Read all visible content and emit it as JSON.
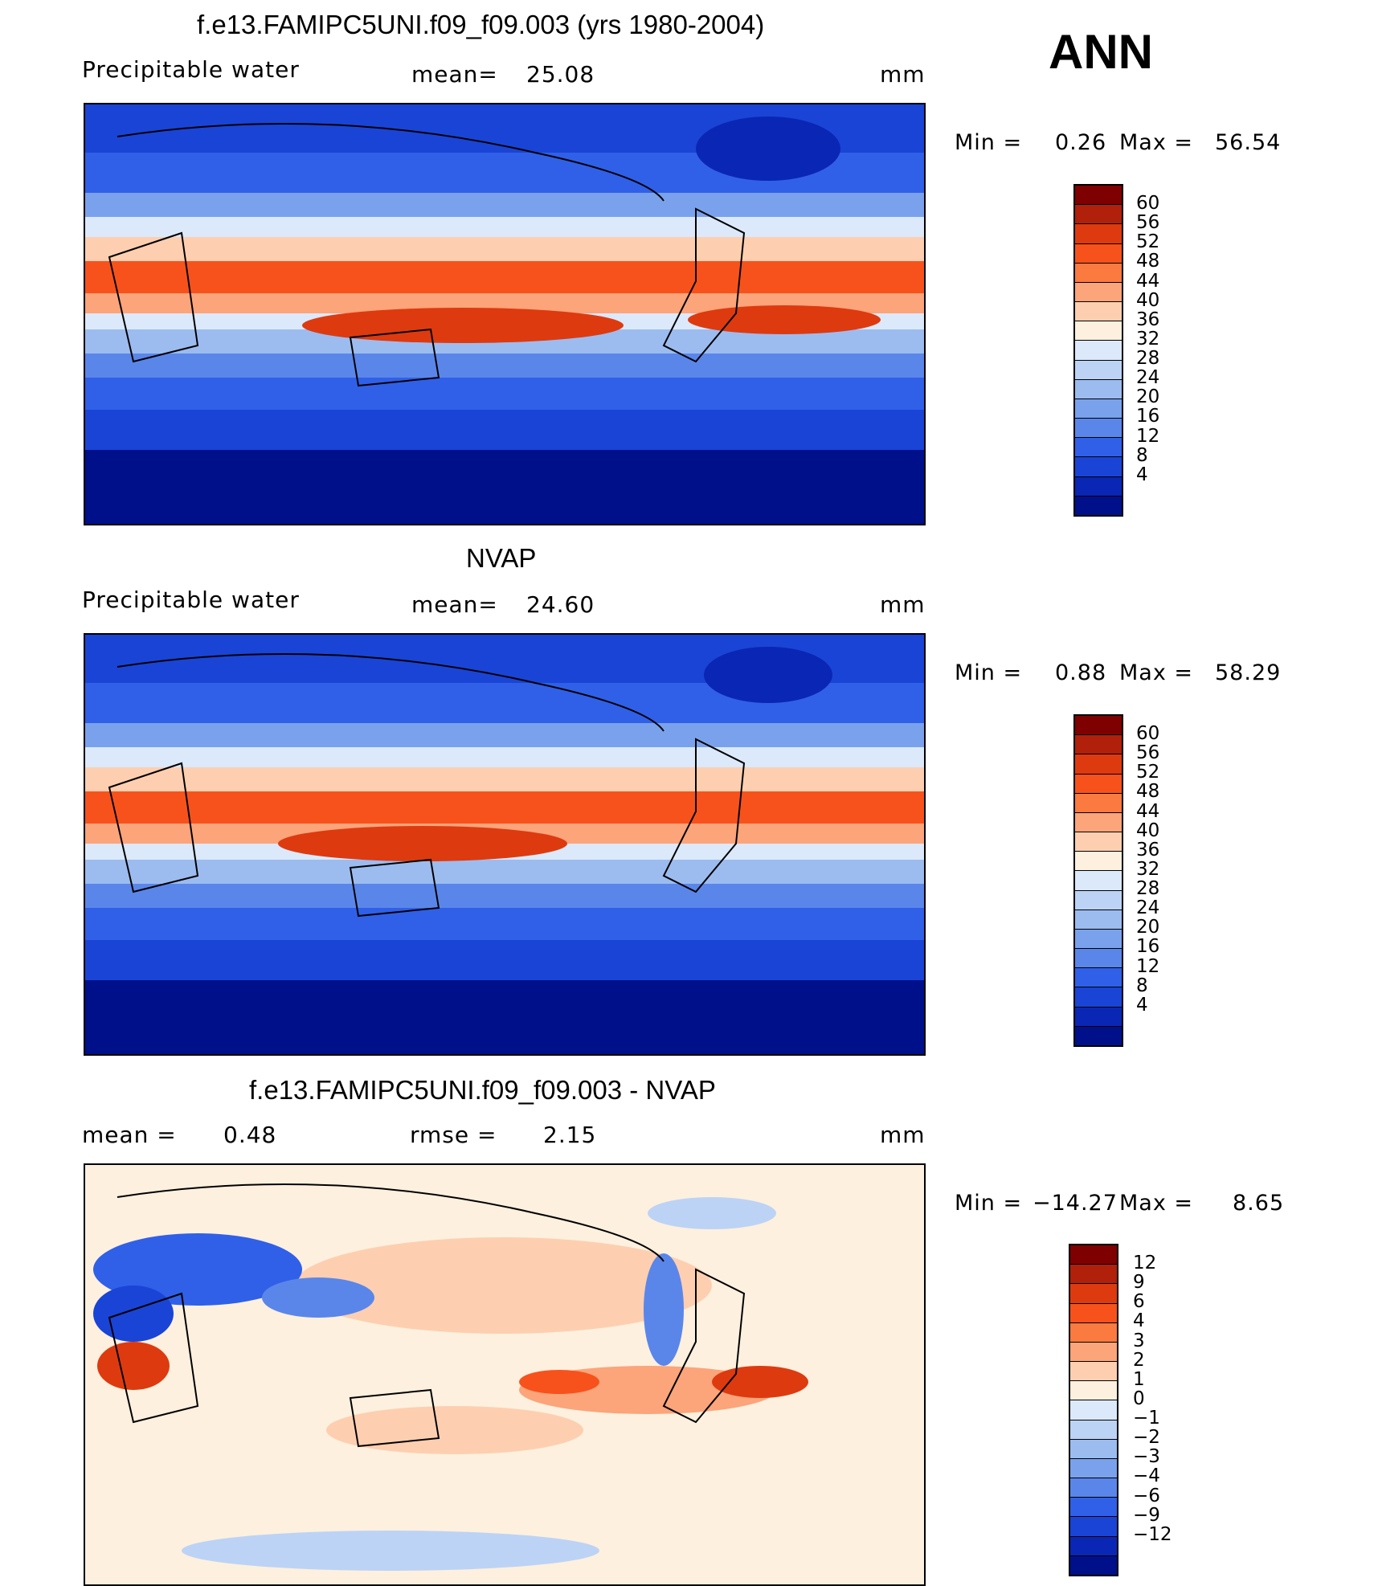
{
  "season": "ANN",
  "colors": {
    "abs_scale": [
      "#7f0000",
      "#b0200a",
      "#de3a0f",
      "#f8521c",
      "#fa7a40",
      "#fca47a",
      "#fdcfb0",
      "#fdf0de",
      "#dbe9fb",
      "#bcd3f6",
      "#9cbcf0",
      "#7aa2ec",
      "#5a86ea",
      "#3060e8",
      "#1a44d6",
      "#0a26b4",
      "#00108a"
    ],
    "diff_scale": [
      "#7f0000",
      "#b0200a",
      "#de3a0f",
      "#f8521c",
      "#fa7a40",
      "#fca47a",
      "#fdcfb0",
      "#fdf0de",
      "#dbe9fb",
      "#bcd3f6",
      "#9cbcf0",
      "#7aa2ec",
      "#5a86ea",
      "#3060e8",
      "#1a44d6",
      "#0a26b4",
      "#00108a"
    ]
  },
  "panels": [
    {
      "title": "f.e13.FAMIPC5UNI.f09_f09.003 (yrs 1980-2004)",
      "variable": "Precipitable  water",
      "stat_label": "mean=",
      "stat_value": "25.08",
      "stat2_label": "",
      "stat2_value": "",
      "units": "mm",
      "min_label": "Min  =",
      "min_value": "0.26",
      "max_label": "Max  =",
      "max_value": "56.54",
      "levels": [
        "60",
        "56",
        "52",
        "48",
        "44",
        "40",
        "36",
        "32",
        "28",
        "24",
        "20",
        "16",
        "12",
        "8",
        "4"
      ]
    },
    {
      "title": "NVAP",
      "variable": "Precipitable  water",
      "stat_label": "mean=",
      "stat_value": "24.60",
      "stat2_label": "",
      "stat2_value": "",
      "units": "mm",
      "min_label": "Min  =",
      "min_value": "0.88",
      "max_label": "Max  =",
      "max_value": "58.29",
      "levels": [
        "60",
        "56",
        "52",
        "48",
        "44",
        "40",
        "36",
        "32",
        "28",
        "24",
        "20",
        "16",
        "12",
        "8",
        "4"
      ]
    },
    {
      "title": "f.e13.FAMIPC5UNI.f09_f09.003 - NVAP",
      "variable": "",
      "stat_label": "mean  =",
      "stat_value": "0.48",
      "stat2_label": "rmse  =",
      "stat2_value": "2.15",
      "units": "mm",
      "min_label": "Min  =",
      "min_value": "−14.27",
      "max_label": "Max  =",
      "max_value": "8.65",
      "levels": [
        "12",
        "9",
        "6",
        "4",
        "3",
        "2",
        "1",
        "0",
        "−1",
        "−2",
        "−3",
        "−4",
        "−6",
        "−9",
        "−12"
      ]
    }
  ]
}
